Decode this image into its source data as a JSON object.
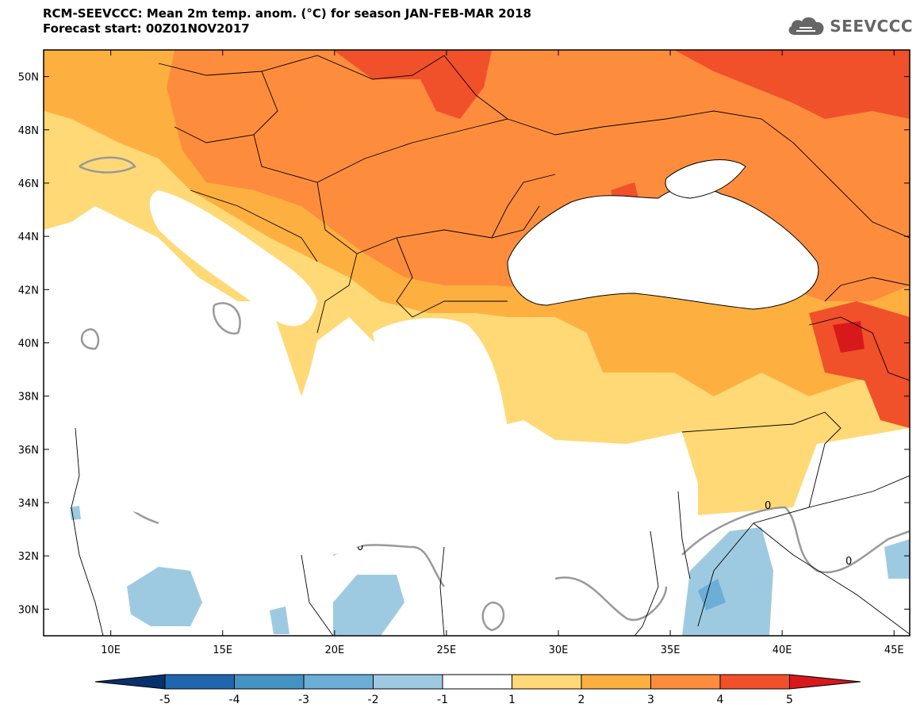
{
  "header": {
    "title_line1": "RCM-SEEVCCC: Mean 2m temp. anom. (°C) for season JAN-FEB-MAR 2018",
    "title_line2": "Forecast start: 00Z01NOV2017"
  },
  "logo": {
    "text": "SEEVCCC",
    "icon": "cloud-icon"
  },
  "map": {
    "lon_range": [
      7,
      45.7
    ],
    "lat_range": [
      29,
      51
    ],
    "lat_ticks": [
      {
        "value": 50,
        "label": "50N"
      },
      {
        "value": 48,
        "label": "48N"
      },
      {
        "value": 46,
        "label": "46N"
      },
      {
        "value": 44,
        "label": "44N"
      },
      {
        "value": 42,
        "label": "42N"
      },
      {
        "value": 40,
        "label": "40N"
      },
      {
        "value": 38,
        "label": "38N"
      },
      {
        "value": 36,
        "label": "36N"
      },
      {
        "value": 34,
        "label": "34N"
      },
      {
        "value": 32,
        "label": "32N"
      },
      {
        "value": 30,
        "label": "30N"
      }
    ],
    "lon_ticks": [
      {
        "value": 10,
        "label": "10E"
      },
      {
        "value": 15,
        "label": "15E"
      },
      {
        "value": 20,
        "label": "20E"
      },
      {
        "value": 25,
        "label": "25E"
      },
      {
        "value": 30,
        "label": "30E"
      },
      {
        "value": 35,
        "label": "35E"
      },
      {
        "value": 40,
        "label": "40E"
      },
      {
        "value": 45,
        "label": "45E"
      }
    ],
    "contour_label": "0"
  },
  "colorbar": {
    "colors": [
      "#08306b",
      "#2166ac",
      "#4393c3",
      "#6baed6",
      "#9ecae1",
      "#ffffff",
      "#fed976",
      "#fdb040",
      "#fd8d3c",
      "#f0502a",
      "#d7191c"
    ],
    "labels": [
      "-5",
      "-4",
      "-3",
      "-2",
      "-1",
      "1",
      "2",
      "3",
      "4",
      "5"
    ]
  }
}
